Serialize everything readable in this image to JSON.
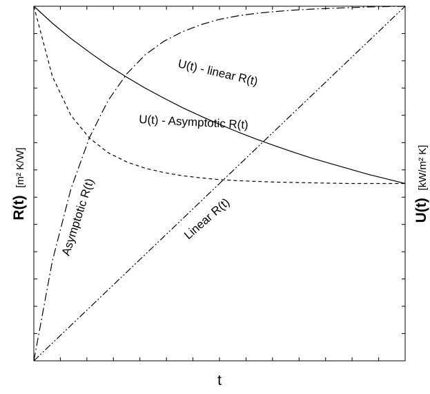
{
  "chart_data": {
    "type": "line",
    "title": "",
    "xlabel": "t",
    "ylabel_left": {
      "symbol": "R(t)",
      "unit": "[m² K/W]"
    },
    "ylabel_right": {
      "symbol": "U(t)",
      "unit": "[kW/m² K]"
    },
    "xlim": [
      0,
      1
    ],
    "ylim": [
      0,
      1
    ],
    "tick_labels_shown": false,
    "grid": false,
    "legend": "none",
    "series": [
      {
        "name": "U(t) - linear R(t)",
        "style": "solid",
        "x": [
          0,
          0.05,
          0.1,
          0.15,
          0.2,
          0.25,
          0.3,
          0.35,
          0.4,
          0.45,
          0.5,
          0.55,
          0.6,
          0.65,
          0.7,
          0.75,
          0.8,
          0.85,
          0.9,
          0.95,
          1.0
        ],
        "y": [
          1.0,
          0.952,
          0.909,
          0.87,
          0.833,
          0.8,
          0.769,
          0.741,
          0.714,
          0.69,
          0.667,
          0.645,
          0.625,
          0.606,
          0.588,
          0.571,
          0.556,
          0.541,
          0.526,
          0.513,
          0.5
        ]
      },
      {
        "name": "U(t) - Asymptotic R(t)",
        "style": "dashed",
        "x": [
          0,
          0.05,
          0.1,
          0.15,
          0.2,
          0.25,
          0.3,
          0.35,
          0.4,
          0.45,
          0.5,
          0.55,
          0.6,
          0.65,
          0.7,
          0.75,
          0.8,
          0.85,
          0.9,
          0.95,
          1.0
        ],
        "y": [
          1.0,
          0.802,
          0.692,
          0.628,
          0.587,
          0.561,
          0.543,
          0.531,
          0.522,
          0.516,
          0.511,
          0.508,
          0.506,
          0.504,
          0.503,
          0.502,
          0.501,
          0.5,
          0.5,
          0.5,
          0.5
        ]
      },
      {
        "name": "Asymptotic R(t)",
        "style": "dashdot",
        "x": [
          0,
          0.05,
          0.1,
          0.15,
          0.2,
          0.25,
          0.3,
          0.35,
          0.4,
          0.45,
          0.5,
          0.55,
          0.6,
          0.65,
          0.7,
          0.75,
          0.8,
          0.85,
          0.9,
          0.95,
          1.0
        ],
        "y": [
          0,
          0.282,
          0.485,
          0.63,
          0.734,
          0.809,
          0.863,
          0.901,
          0.928,
          0.948,
          0.963,
          0.973,
          0.98,
          0.985,
          0.989,
          0.992,
          0.994,
          0.996,
          0.998,
          0.999,
          1.0
        ]
      },
      {
        "name": "Linear R(t)",
        "style": "dashdotdot",
        "x": [
          0,
          1
        ],
        "y": [
          0,
          1
        ]
      }
    ]
  }
}
